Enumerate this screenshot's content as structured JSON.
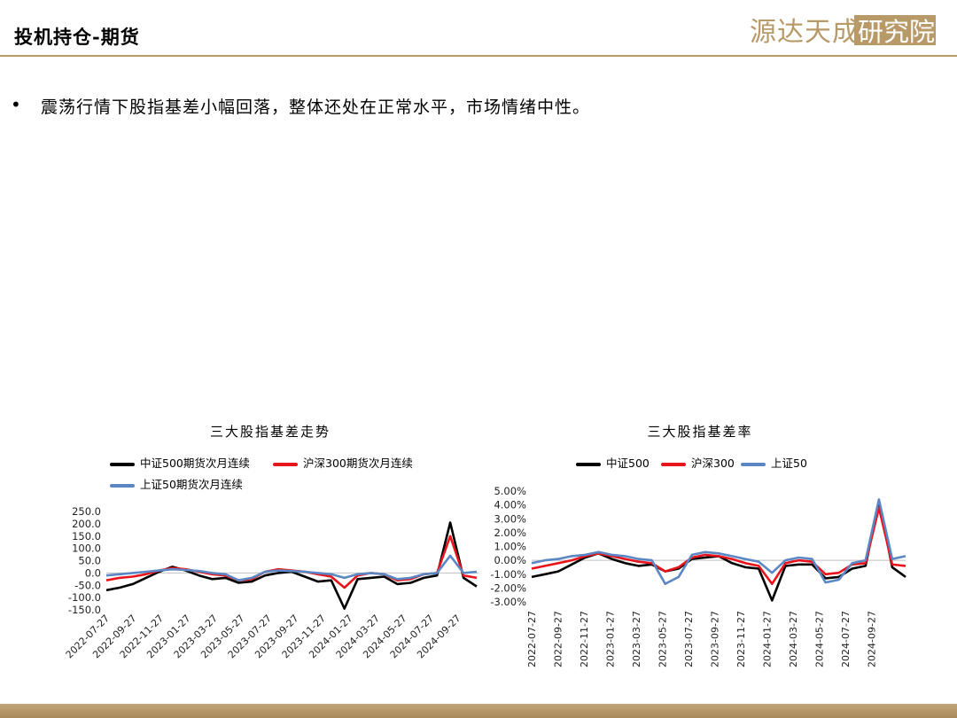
{
  "header": {
    "title": "投机持仓-期货",
    "logo_text": "源达天成研究院",
    "accent_color": "#b89a68"
  },
  "body": {
    "bullet": "震荡行情下股指基差小幅回落，整体还处在正常水平，市场情绪中性。"
  },
  "chart_data": [
    {
      "type": "line",
      "title": "三大股指基差走势",
      "ylim": [
        -150,
        250
      ],
      "yticks": [
        "250.0",
        "200.0",
        "150.0",
        "100.0",
        "50.0",
        "0.0",
        "-50.0",
        "-100.0",
        "-150.0"
      ],
      "xticks": [
        "2022-07-27",
        "2022-09-27",
        "2022-11-27",
        "2023-01-27",
        "2023-03-27",
        "2023-05-27",
        "2023-07-27",
        "2023-09-27",
        "2023-11-27",
        "2024-01-27",
        "2024-03-27",
        "2024-05-27",
        "2024-07-27",
        "2024-09-27"
      ],
      "x": [
        "2022-07",
        "2022-08",
        "2022-09",
        "2022-10",
        "2022-11",
        "2022-12",
        "2023-01",
        "2023-02",
        "2023-03",
        "2023-04",
        "2023-05",
        "2023-06",
        "2023-07",
        "2023-08",
        "2023-09",
        "2023-10",
        "2023-11",
        "2023-12",
        "2024-01",
        "2024-02",
        "2024-03",
        "2024-04",
        "2024-05",
        "2024-06",
        "2024-07",
        "2024-08",
        "2024-09",
        "2024-10",
        "2024-11"
      ],
      "series": [
        {
          "name": "中证500期货次月连续",
          "color": "#000000",
          "values": [
            -70,
            -60,
            -45,
            -20,
            5,
            25,
            10,
            -10,
            -25,
            -20,
            -40,
            -35,
            -10,
            0,
            5,
            -15,
            -35,
            -30,
            -145,
            -25,
            -20,
            -15,
            -45,
            -40,
            -20,
            -10,
            205,
            -20,
            -55
          ]
        },
        {
          "name": "沪深300期货次月连续",
          "color": "#e8141c",
          "values": [
            -30,
            -20,
            -15,
            -5,
            10,
            20,
            15,
            5,
            -5,
            -10,
            -30,
            -25,
            5,
            15,
            10,
            5,
            -5,
            -15,
            -60,
            -10,
            0,
            -5,
            -30,
            -25,
            -5,
            0,
            150,
            -10,
            -20
          ]
        },
        {
          "name": "上证50期货次月连续",
          "color": "#5b87c5",
          "values": [
            -10,
            -5,
            0,
            5,
            10,
            15,
            12,
            8,
            0,
            -5,
            -30,
            -20,
            5,
            10,
            8,
            5,
            0,
            -5,
            -20,
            -5,
            0,
            -5,
            -25,
            -20,
            -5,
            0,
            70,
            0,
            5
          ]
        }
      ]
    },
    {
      "type": "line",
      "title": "三大股指基差率",
      "ylim": [
        -3,
        5
      ],
      "yticks": [
        "5.00%",
        "4.00%",
        "3.00%",
        "2.00%",
        "1.00%",
        "0.00%",
        "-1.00%",
        "-2.00%",
        "-3.00%"
      ],
      "xticks": [
        "2022-07-27",
        "2022-09-27",
        "2022-11-27",
        "2023-01-27",
        "2023-03-27",
        "2023-05-27",
        "2023-07-27",
        "2023-09-27",
        "2023-11-27",
        "2024-01-27",
        "2024-03-27",
        "2024-05-27",
        "2024-07-27",
        "2024-09-27"
      ],
      "x": [
        "2022-07",
        "2022-08",
        "2022-09",
        "2022-10",
        "2022-11",
        "2022-12",
        "2023-01",
        "2023-02",
        "2023-03",
        "2023-04",
        "2023-05",
        "2023-06",
        "2023-07",
        "2023-08",
        "2023-09",
        "2023-10",
        "2023-11",
        "2023-12",
        "2024-01",
        "2024-02",
        "2024-03",
        "2024-04",
        "2024-05",
        "2024-06",
        "2024-07",
        "2024-08",
        "2024-09",
        "2024-10",
        "2024-11"
      ],
      "series": [
        {
          "name": "中证500",
          "color": "#000000",
          "values": [
            -1.2,
            -1.0,
            -0.8,
            -0.3,
            0.2,
            0.5,
            0.1,
            -0.2,
            -0.4,
            -0.3,
            -0.8,
            -0.6,
            0.1,
            0.2,
            0.3,
            -0.2,
            -0.5,
            -0.6,
            -2.9,
            -0.4,
            -0.3,
            -0.3,
            -1.3,
            -1.2,
            -0.6,
            -0.4,
            4.3,
            -0.5,
            -1.2
          ]
        },
        {
          "name": "沪深300",
          "color": "#e8141c",
          "values": [
            -0.6,
            -0.4,
            -0.2,
            0,
            0.3,
            0.5,
            0.3,
            0.1,
            -0.1,
            -0.2,
            -0.8,
            -0.5,
            0.2,
            0.4,
            0.3,
            0.1,
            -0.2,
            -0.4,
            -1.7,
            -0.2,
            0,
            -0.1,
            -1.0,
            -0.9,
            -0.3,
            -0.2,
            3.8,
            -0.3,
            -0.4
          ]
        },
        {
          "name": "上证50",
          "color": "#5b87c5",
          "values": [
            -0.2,
            0,
            0.1,
            0.3,
            0.4,
            0.6,
            0.4,
            0.3,
            0.1,
            0,
            -1.7,
            -1.2,
            0.4,
            0.6,
            0.5,
            0.3,
            0.1,
            -0.1,
            -0.9,
            0,
            0.2,
            0.1,
            -1.6,
            -1.4,
            -0.2,
            0,
            4.4,
            0.1,
            0.3
          ]
        }
      ]
    }
  ]
}
